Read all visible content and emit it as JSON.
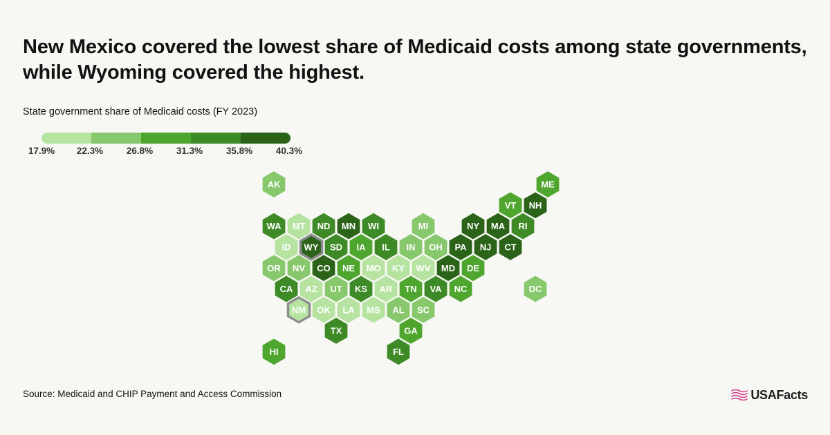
{
  "title_lines": [
    "New Mexico covered the lowest share of Medicaid costs among state governments,",
    "while Wyoming covered the highest."
  ],
  "legend": {
    "title": "State government share of Medicaid costs (FY 2023)",
    "ticks": [
      "17.9%",
      "22.3%",
      "26.8%",
      "31.3%",
      "35.8%",
      "40.3%"
    ],
    "bins": [
      {
        "min": 17.9,
        "max": 22.3,
        "color": "#b7e3a1"
      },
      {
        "min": 22.3,
        "max": 26.8,
        "color": "#86c86b"
      },
      {
        "min": 26.8,
        "max": 31.3,
        "color": "#4ea62e"
      },
      {
        "min": 31.3,
        "max": 35.8,
        "color": "#3d8a26"
      },
      {
        "min": 35.8,
        "max": 40.3,
        "color": "#2b6419"
      }
    ]
  },
  "highlight_outline_color": "#8c8c8c",
  "states": [
    {
      "abbr": "AK",
      "row": 0,
      "col": 0,
      "bin": 1
    },
    {
      "abbr": "ME",
      "row": 0,
      "col": 11,
      "bin": 2
    },
    {
      "abbr": "VT",
      "row": 1,
      "col": 9,
      "bin": 2
    },
    {
      "abbr": "NH",
      "row": 1,
      "col": 10,
      "bin": 4
    },
    {
      "abbr": "WA",
      "row": 2,
      "col": 0,
      "bin": 3
    },
    {
      "abbr": "MT",
      "row": 2,
      "col": 1,
      "bin": 0
    },
    {
      "abbr": "ND",
      "row": 2,
      "col": 2,
      "bin": 3
    },
    {
      "abbr": "MN",
      "row": 2,
      "col": 3,
      "bin": 4
    },
    {
      "abbr": "WI",
      "row": 2,
      "col": 4,
      "bin": 3
    },
    {
      "abbr": "MI",
      "row": 2,
      "col": 6,
      "bin": 1
    },
    {
      "abbr": "NY",
      "row": 2,
      "col": 8,
      "bin": 4
    },
    {
      "abbr": "MA",
      "row": 2,
      "col": 9,
      "bin": 4
    },
    {
      "abbr": "RI",
      "row": 2,
      "col": 10,
      "bin": 3
    },
    {
      "abbr": "ID",
      "row": 3,
      "col": 0,
      "bin": 0
    },
    {
      "abbr": "WY",
      "row": 3,
      "col": 1,
      "bin": 4,
      "highlight": true
    },
    {
      "abbr": "SD",
      "row": 3,
      "col": 2,
      "bin": 3
    },
    {
      "abbr": "IA",
      "row": 3,
      "col": 3,
      "bin": 2
    },
    {
      "abbr": "IL",
      "row": 3,
      "col": 4,
      "bin": 3
    },
    {
      "abbr": "IN",
      "row": 3,
      "col": 5,
      "bin": 1
    },
    {
      "abbr": "OH",
      "row": 3,
      "col": 6,
      "bin": 1
    },
    {
      "abbr": "PA",
      "row": 3,
      "col": 7,
      "bin": 4
    },
    {
      "abbr": "NJ",
      "row": 3,
      "col": 8,
      "bin": 4
    },
    {
      "abbr": "CT",
      "row": 3,
      "col": 9,
      "bin": 4
    },
    {
      "abbr": "OR",
      "row": 4,
      "col": 0,
      "bin": 1
    },
    {
      "abbr": "NV",
      "row": 4,
      "col": 1,
      "bin": 1
    },
    {
      "abbr": "CO",
      "row": 4,
      "col": 2,
      "bin": 4
    },
    {
      "abbr": "NE",
      "row": 4,
      "col": 3,
      "bin": 2
    },
    {
      "abbr": "MO",
      "row": 4,
      "col": 4,
      "bin": 0
    },
    {
      "abbr": "KY",
      "row": 4,
      "col": 5,
      "bin": 0
    },
    {
      "abbr": "WV",
      "row": 4,
      "col": 6,
      "bin": 0
    },
    {
      "abbr": "MD",
      "row": 4,
      "col": 7,
      "bin": 4
    },
    {
      "abbr": "DE",
      "row": 4,
      "col": 8,
      "bin": 2
    },
    {
      "abbr": "CA",
      "row": 5,
      "col": 0,
      "bin": 3
    },
    {
      "abbr": "AZ",
      "row": 5,
      "col": 1,
      "bin": 0
    },
    {
      "abbr": "UT",
      "row": 5,
      "col": 2,
      "bin": 1
    },
    {
      "abbr": "KS",
      "row": 5,
      "col": 3,
      "bin": 3
    },
    {
      "abbr": "AR",
      "row": 5,
      "col": 4,
      "bin": 0
    },
    {
      "abbr": "TN",
      "row": 5,
      "col": 5,
      "bin": 2
    },
    {
      "abbr": "VA",
      "row": 5,
      "col": 6,
      "bin": 3
    },
    {
      "abbr": "NC",
      "row": 5,
      "col": 7,
      "bin": 2
    },
    {
      "abbr": "DC",
      "row": 5,
      "col": 10,
      "bin": 1
    },
    {
      "abbr": "NM",
      "row": 6,
      "col": 1,
      "bin": 0,
      "highlight": true
    },
    {
      "abbr": "OK",
      "row": 6,
      "col": 2,
      "bin": 0
    },
    {
      "abbr": "LA",
      "row": 6,
      "col": 3,
      "bin": 0
    },
    {
      "abbr": "MS",
      "row": 6,
      "col": 4,
      "bin": 0
    },
    {
      "abbr": "AL",
      "row": 6,
      "col": 5,
      "bin": 1
    },
    {
      "abbr": "SC",
      "row": 6,
      "col": 6,
      "bin": 1
    },
    {
      "abbr": "TX",
      "row": 7,
      "col": 2,
      "bin": 3
    },
    {
      "abbr": "GA",
      "row": 7,
      "col": 5,
      "bin": 2
    },
    {
      "abbr": "HI",
      "row": 8,
      "col": 0,
      "bin": 2
    },
    {
      "abbr": "FL",
      "row": 8,
      "col": 5,
      "bin": 3
    }
  ],
  "source": "Source: Medicaid and CHIP Payment and Access Commission",
  "brand": {
    "name": "USAFacts",
    "icon": "usa-flag-icon",
    "icon_color": "#d23c8c"
  }
}
